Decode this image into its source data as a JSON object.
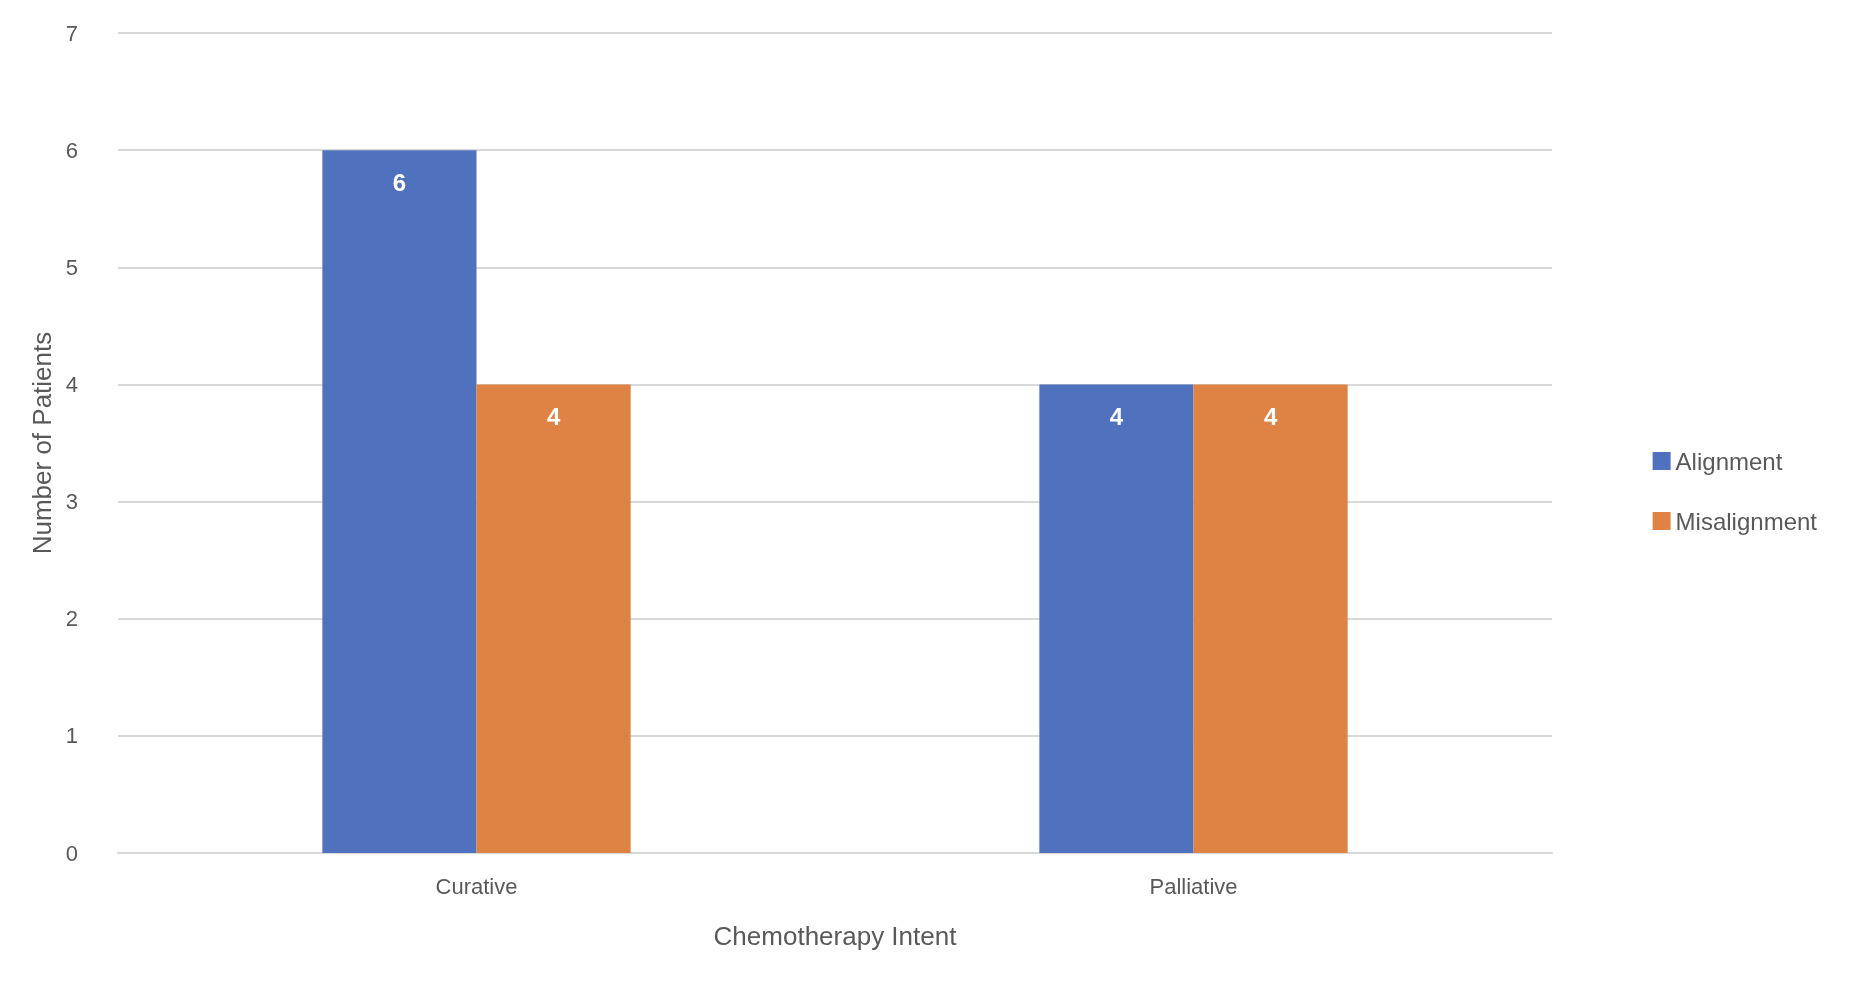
{
  "chart_data": {
    "type": "bar",
    "xlabel": "Chemotherapy Intent",
    "ylabel": "Number of Patients",
    "categories": [
      "Curative",
      "Palliative"
    ],
    "series": [
      {
        "name": "Alignment",
        "color": "#4f71be",
        "values": [
          6,
          4
        ]
      },
      {
        "name": "Misalignment",
        "color": "#de8344",
        "values": [
          4,
          4
        ]
      }
    ],
    "ylim": [
      0,
      7
    ],
    "yticks": [
      0,
      1,
      2,
      3,
      4,
      5,
      6,
      7
    ],
    "grid": "y",
    "legend": "right",
    "data_labels": true
  }
}
